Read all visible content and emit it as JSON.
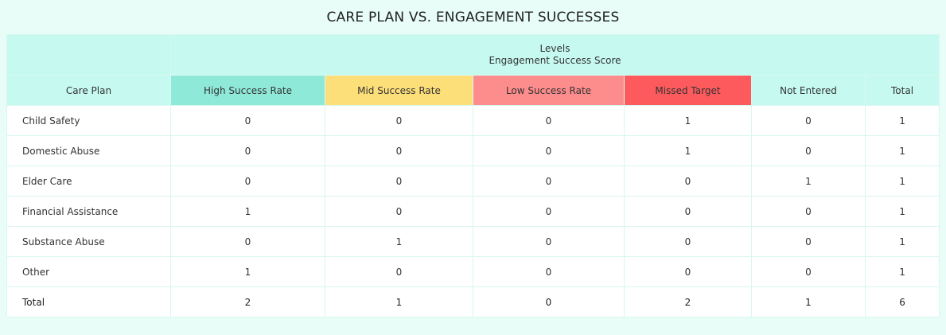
{
  "title": "CARE PLAN VS. ENGAGEMENT SUCCESSES",
  "header": {
    "group_line1": "Levels",
    "group_line2": "Engagement Success Score",
    "row_header": "Care Plan",
    "columns": [
      {
        "label": "High Success Rate",
        "color": "#8fe9d9"
      },
      {
        "label": "Mid Success Rate",
        "color": "#fddf7a"
      },
      {
        "label": "Low Success Rate",
        "color": "#fd8c8c"
      },
      {
        "label": "Missed Target",
        "color": "#fd5a5e"
      },
      {
        "label": "Not Entered",
        "color": "#c6faf0"
      },
      {
        "label": "Total",
        "color": "#c6faf0"
      }
    ]
  },
  "rows": [
    {
      "label": "Child Safety",
      "values": [
        "0",
        "0",
        "0",
        "1",
        "0",
        "1"
      ]
    },
    {
      "label": "Domestic Abuse",
      "values": [
        "0",
        "0",
        "0",
        "1",
        "0",
        "1"
      ]
    },
    {
      "label": "Elder Care",
      "values": [
        "0",
        "0",
        "0",
        "0",
        "1",
        "1"
      ]
    },
    {
      "label": "Financial Assistance",
      "values": [
        "1",
        "0",
        "0",
        "0",
        "0",
        "1"
      ]
    },
    {
      "label": "Substance Abuse",
      "values": [
        "0",
        "1",
        "0",
        "0",
        "0",
        "1"
      ]
    },
    {
      "label": "Other",
      "values": [
        "1",
        "0",
        "0",
        "0",
        "0",
        "1"
      ]
    }
  ],
  "totals": {
    "label": "Total",
    "values": [
      "2",
      "1",
      "0",
      "2",
      "1",
      "6"
    ]
  }
}
